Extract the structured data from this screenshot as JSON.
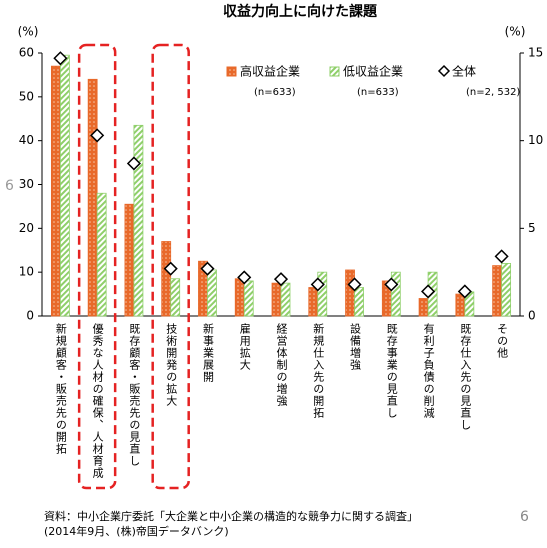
{
  "chart_data": {
    "type": "bar",
    "title": "収益力向上に向けた課題",
    "y_unit_label": "(%)",
    "y2_unit_label": "(%)",
    "categories": [
      "新規顧客・販売先の開拓",
      "優秀な人材の確保、人材育成",
      "既存顧客・販売先の見直し",
      "技術開発の拡大",
      "新事業展開",
      "雇用拡大",
      "経営体制の増強",
      "新規仕入先の開拓",
      "設備増強",
      "既存事業の見直し",
      "有利子負債の削減",
      "既存仕入先の見直し",
      "その他"
    ],
    "series": [
      {
        "name": "高収益企業",
        "note": "(n=633)",
        "color": "#e8692a",
        "kind": "bar",
        "values": [
          57,
          54,
          25.5,
          17,
          12.5,
          8.5,
          7.5,
          6.5,
          10.5,
          8,
          4,
          5,
          11.5
        ]
      },
      {
        "name": "低収益企業",
        "note": "(n=633)",
        "color": "#8fcf6a",
        "kind": "bar",
        "values": [
          59.5,
          28,
          43.5,
          8.5,
          10.5,
          8,
          7.5,
          10,
          6.5,
          10,
          10,
          5.5,
          12
        ]
      },
      {
        "name": "全体",
        "note": "(n=2, 532)",
        "color": "#000000",
        "kind": "marker",
        "axis": "y2",
        "values": [
          14.7,
          10.3,
          8.7,
          2.7,
          2.7,
          2.2,
          2.1,
          1.8,
          1.8,
          1.8,
          1.4,
          1.4,
          3.4
        ]
      }
    ],
    "ylim": [
      0,
      60
    ],
    "yticks": [
      0,
      10,
      20,
      30,
      40,
      50,
      60
    ],
    "y2lim": [
      0,
      15
    ],
    "y2ticks": [
      0,
      5,
      10,
      15
    ],
    "highlighted_categories": [
      1,
      3
    ],
    "source_lines": [
      "資料：中小企業庁委託「大企業と中小企業の構造的な競争力に関する調査」",
      "(2014年9月、(株)帝国データバンク)"
    ],
    "page_number": "6",
    "side_mark": "6"
  }
}
